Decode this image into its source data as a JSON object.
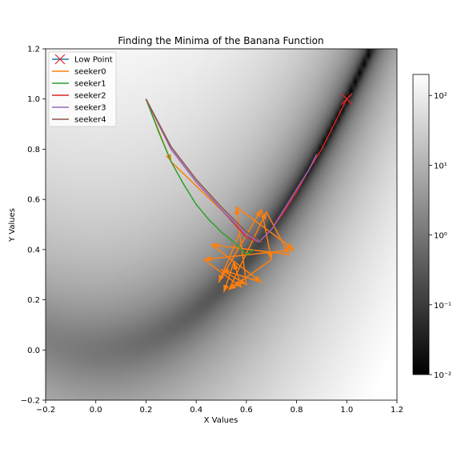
{
  "chart_data": {
    "type": "heatmap",
    "title": "Finding the Minima of the Banana Function",
    "xlabel": "X Values",
    "ylabel": "Y Values",
    "xlim": [
      -0.2,
      1.2
    ],
    "ylim": [
      -0.2,
      1.2
    ],
    "x_ticks": [
      "−0.2",
      "0.0",
      "0.2",
      "0.4",
      "0.6",
      "0.8",
      "1.0",
      "1.2"
    ],
    "y_ticks": [
      "−0.2",
      "0.0",
      "0.2",
      "0.4",
      "0.6",
      "0.8",
      "1.0",
      "1.2"
    ],
    "heatmap": {
      "function": "rosenbrock",
      "scale": "log",
      "cmap": "gray",
      "vmin": 0.01,
      "vmax": 200
    },
    "colorbar": {
      "scale": "log",
      "tick_values": [
        0.01,
        0.1,
        1,
        10,
        100
      ],
      "tick_labels": [
        "10⁻²",
        "10⁻¹",
        "10⁰",
        "10¹",
        "10²"
      ]
    },
    "legend": {
      "position": "upper left",
      "entries": [
        "Low Point",
        "seeker0",
        "seeker1",
        "seeker2",
        "seeker3",
        "seeker4"
      ]
    },
    "low_point": {
      "name": "Low Point",
      "x": 1.0,
      "y": 1.0,
      "marker": "x",
      "color": "#d62728"
    },
    "series": [
      {
        "name": "seeker0",
        "color": "#ff7f0e",
        "points": [
          [
            0.2,
            1.0
          ],
          [
            0.3,
            0.75
          ],
          [
            0.58,
            0.48
          ],
          [
            0.49,
            0.27
          ],
          [
            0.66,
            0.56
          ],
          [
            0.7,
            0.36
          ],
          [
            0.53,
            0.24
          ],
          [
            0.68,
            0.55
          ],
          [
            0.77,
            0.38
          ],
          [
            0.46,
            0.42
          ],
          [
            0.66,
            0.27
          ],
          [
            0.5,
            0.32
          ],
          [
            0.6,
            0.26
          ],
          [
            0.56,
            0.57
          ],
          [
            0.79,
            0.4
          ],
          [
            0.43,
            0.36
          ],
          [
            0.58,
            0.25
          ],
          [
            0.55,
            0.35
          ],
          [
            0.51,
            0.23
          ]
        ]
      },
      {
        "name": "seeker1",
        "color": "#2ca02c",
        "points": [
          [
            0.2,
            1.0
          ],
          [
            0.25,
            0.87
          ],
          [
            0.3,
            0.75
          ],
          [
            0.35,
            0.66
          ],
          [
            0.4,
            0.58
          ],
          [
            0.45,
            0.52
          ],
          [
            0.5,
            0.47
          ],
          [
            0.55,
            0.43
          ],
          [
            0.58,
            0.4
          ],
          [
            0.6,
            0.38
          ],
          [
            0.63,
            0.4
          ]
        ]
      },
      {
        "name": "seeker2",
        "color": "#d62728",
        "points": [
          [
            0.2,
            1.0
          ],
          [
            0.3,
            0.8
          ],
          [
            0.4,
            0.67
          ],
          [
            0.5,
            0.56
          ],
          [
            0.6,
            0.45
          ],
          [
            0.65,
            0.43
          ],
          [
            0.7,
            0.48
          ],
          [
            0.75,
            0.55
          ],
          [
            0.8,
            0.63
          ],
          [
            0.85,
            0.72
          ],
          [
            0.9,
            0.8
          ],
          [
            0.95,
            0.9
          ],
          [
            1.0,
            1.0
          ]
        ]
      },
      {
        "name": "seeker3",
        "color": "#9467bd",
        "points": [
          [
            0.2,
            1.0
          ],
          [
            0.3,
            0.8
          ],
          [
            0.4,
            0.67
          ],
          [
            0.5,
            0.56
          ],
          [
            0.6,
            0.46
          ],
          [
            0.65,
            0.43
          ],
          [
            0.7,
            0.48
          ],
          [
            0.75,
            0.56
          ],
          [
            0.8,
            0.64
          ],
          [
            0.85,
            0.72
          ],
          [
            0.88,
            0.78
          ]
        ]
      },
      {
        "name": "seeker4",
        "color": "#8c564b",
        "points": [
          [
            0.2,
            1.0
          ],
          [
            0.3,
            0.81
          ],
          [
            0.4,
            0.68
          ],
          [
            0.5,
            0.57
          ],
          [
            0.6,
            0.47
          ],
          [
            0.66,
            0.43
          ]
        ]
      }
    ]
  }
}
